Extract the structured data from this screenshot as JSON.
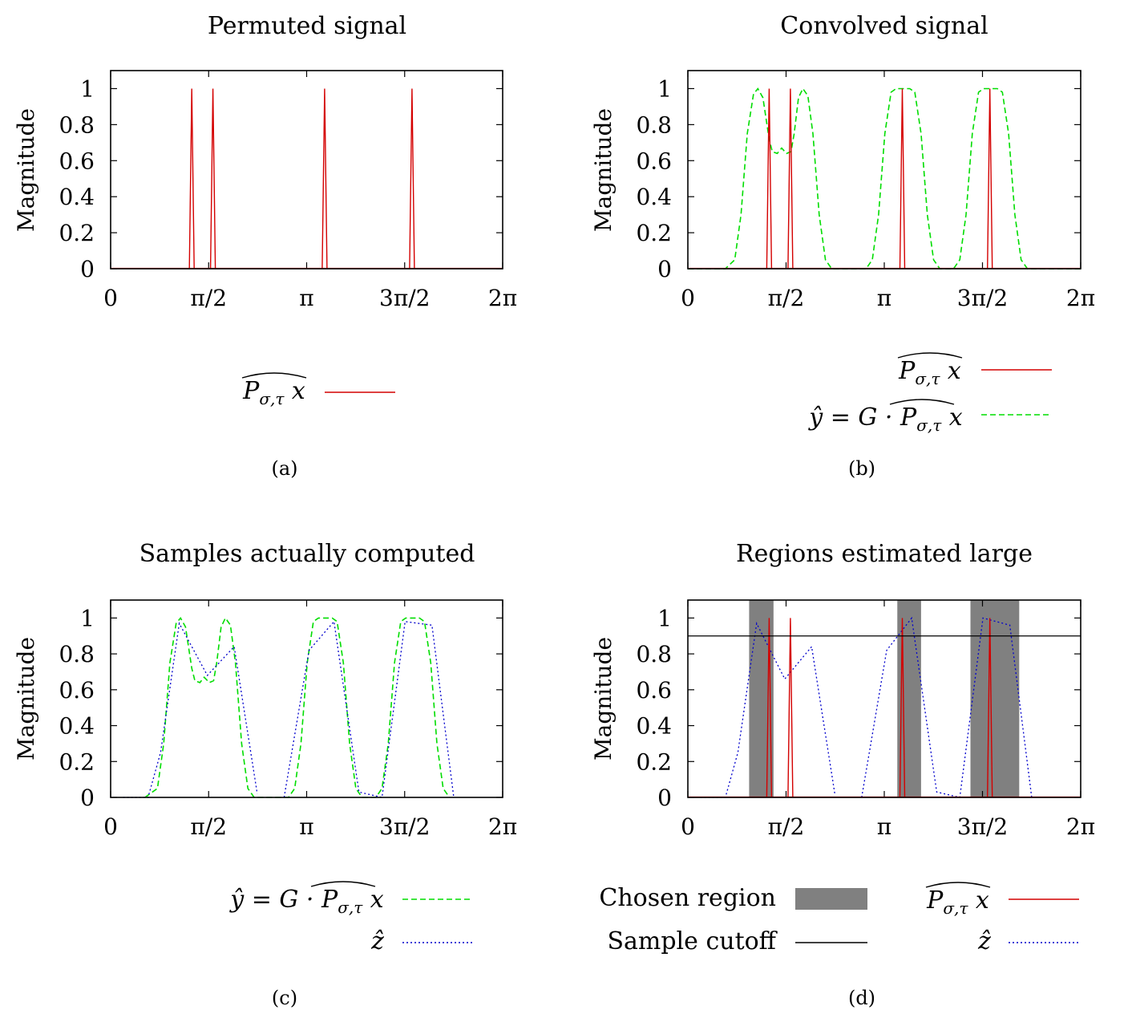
{
  "xtick_labels": [
    "0",
    "π/2",
    "π",
    "3π/2",
    "2π"
  ],
  "ytick_labels": [
    "0",
    "0.2",
    "0.4",
    "0.6",
    "0.8",
    "1"
  ],
  "colors": {
    "permuted": "#d40000",
    "convolved": "#00dd00",
    "zhat": "#0000cc",
    "chosen_region": "#808080",
    "cutoff": "#000000"
  },
  "chart_data": [
    {
      "id": "a",
      "type": "line",
      "title": "Permuted signal",
      "ylabel": "Magnitude",
      "caption": "(a)",
      "xlim": [
        0,
        6.2832
      ],
      "ylim": [
        0,
        1.1
      ],
      "legend_position": "bottom",
      "spikes": [
        1.3,
        1.64,
        3.43,
        4.83
      ],
      "series": [
        {
          "key": "permuted",
          "name": "P̂σ,τ x",
          "style": "solid",
          "color": "#d40000"
        }
      ]
    },
    {
      "id": "b",
      "type": "line",
      "title": "Convolved signal",
      "ylabel": "Magnitude",
      "caption": "(b)",
      "xlim": [
        0,
        6.2832
      ],
      "ylim": [
        0,
        1.1
      ],
      "legend_position": "bottom-right",
      "spikes": [
        1.3,
        1.64,
        3.43,
        4.83
      ],
      "convolved_points": [
        [
          0,
          0
        ],
        [
          0.6,
          0
        ],
        [
          0.75,
          0.05
        ],
        [
          0.85,
          0.3
        ],
        [
          0.95,
          0.75
        ],
        [
          1.05,
          0.97
        ],
        [
          1.12,
          1.0
        ],
        [
          1.2,
          0.95
        ],
        [
          1.3,
          0.72
        ],
        [
          1.35,
          0.65
        ],
        [
          1.43,
          0.64
        ],
        [
          1.5,
          0.67
        ],
        [
          1.58,
          0.64
        ],
        [
          1.65,
          0.65
        ],
        [
          1.7,
          0.75
        ],
        [
          1.77,
          0.95
        ],
        [
          1.84,
          1.0
        ],
        [
          1.92,
          0.96
        ],
        [
          2.0,
          0.75
        ],
        [
          2.1,
          0.3
        ],
        [
          2.2,
          0.05
        ],
        [
          2.3,
          0
        ],
        [
          2.85,
          0
        ],
        [
          2.95,
          0.05
        ],
        [
          3.05,
          0.3
        ],
        [
          3.15,
          0.75
        ],
        [
          3.25,
          0.98
        ],
        [
          3.33,
          1.0
        ],
        [
          3.55,
          1.0
        ],
        [
          3.63,
          0.98
        ],
        [
          3.73,
          0.75
        ],
        [
          3.83,
          0.3
        ],
        [
          3.93,
          0.05
        ],
        [
          4.03,
          0
        ],
        [
          4.25,
          0
        ],
        [
          4.35,
          0.05
        ],
        [
          4.45,
          0.3
        ],
        [
          4.55,
          0.75
        ],
        [
          4.65,
          0.98
        ],
        [
          4.73,
          1.0
        ],
        [
          4.95,
          1.0
        ],
        [
          5.03,
          0.98
        ],
        [
          5.13,
          0.75
        ],
        [
          5.23,
          0.3
        ],
        [
          5.33,
          0.05
        ],
        [
          5.43,
          0
        ],
        [
          6.2832,
          0
        ]
      ],
      "series": [
        {
          "key": "permuted",
          "name": "P̂σ,τ x",
          "style": "solid",
          "color": "#d40000"
        },
        {
          "key": "convolved",
          "name": "ŷ = G · P̂σ,τ x",
          "style": "dashed",
          "color": "#00dd00"
        }
      ]
    },
    {
      "id": "c",
      "type": "line",
      "title": "Samples actually computed",
      "ylabel": "Magnitude",
      "caption": "(c)",
      "xlim": [
        0,
        6.2832
      ],
      "ylim": [
        0,
        1.1
      ],
      "legend_position": "bottom",
      "convolved_points": [
        [
          0.55,
          0
        ],
        [
          0.75,
          0.05
        ],
        [
          0.85,
          0.3
        ],
        [
          0.95,
          0.75
        ],
        [
          1.05,
          0.97
        ],
        [
          1.12,
          1.0
        ],
        [
          1.2,
          0.95
        ],
        [
          1.3,
          0.72
        ],
        [
          1.35,
          0.65
        ],
        [
          1.43,
          0.64
        ],
        [
          1.5,
          0.67
        ],
        [
          1.58,
          0.64
        ],
        [
          1.65,
          0.65
        ],
        [
          1.7,
          0.75
        ],
        [
          1.77,
          0.95
        ],
        [
          1.84,
          1.0
        ],
        [
          1.92,
          0.96
        ],
        [
          2.0,
          0.75
        ],
        [
          2.1,
          0.3
        ],
        [
          2.2,
          0.05
        ],
        [
          2.3,
          0
        ],
        [
          2.85,
          0
        ],
        [
          2.95,
          0.05
        ],
        [
          3.05,
          0.3
        ],
        [
          3.15,
          0.75
        ],
        [
          3.25,
          0.98
        ],
        [
          3.33,
          1.0
        ],
        [
          3.55,
          1.0
        ],
        [
          3.63,
          0.98
        ],
        [
          3.73,
          0.75
        ],
        [
          3.83,
          0.3
        ],
        [
          3.93,
          0.05
        ],
        [
          4.03,
          0
        ],
        [
          4.25,
          0
        ],
        [
          4.35,
          0.05
        ],
        [
          4.45,
          0.3
        ],
        [
          4.55,
          0.75
        ],
        [
          4.65,
          0.98
        ],
        [
          4.73,
          1.0
        ],
        [
          4.95,
          1.0
        ],
        [
          5.03,
          0.98
        ],
        [
          5.13,
          0.75
        ],
        [
          5.23,
          0.3
        ],
        [
          5.33,
          0.05
        ],
        [
          5.43,
          0
        ]
      ],
      "zhat_segments": [
        [
          [
            0.2,
            0
          ],
          [
            0.6,
            0
          ],
          [
            0.8,
            0.25
          ],
          [
            1.1,
            0.97
          ],
          [
            1.55,
            0.68
          ],
          [
            1.98,
            0.84
          ],
          [
            2.35,
            0.02
          ]
        ],
        [
          [
            2.78,
            0
          ],
          [
            3.18,
            0.82
          ],
          [
            3.58,
            0.98
          ],
          [
            3.98,
            0.03
          ],
          [
            4.35,
            0
          ],
          [
            4.72,
            0.98
          ],
          [
            5.15,
            0.96
          ],
          [
            5.5,
            0
          ]
        ]
      ],
      "series": [
        {
          "key": "convolved",
          "name": "ŷ = G · P̂σ,τ x",
          "style": "dashed",
          "color": "#00dd00"
        },
        {
          "key": "zhat",
          "name": "ẑ",
          "style": "dotted",
          "color": "#0000cc"
        }
      ]
    },
    {
      "id": "d",
      "type": "line",
      "title": "Regions estimated large",
      "ylabel": "Magnitude",
      "caption": "(d)",
      "xlim": [
        0,
        6.2832
      ],
      "ylim": [
        0,
        1.1
      ],
      "legend_position": "bottom",
      "cutoff": 0.9,
      "chosen_regions": [
        [
          0.98,
          1.37
        ],
        [
          3.35,
          3.73
        ],
        [
          4.52,
          5.3
        ]
      ],
      "spikes": [
        1.3,
        1.64,
        3.43,
        4.83
      ],
      "zhat_segments": [
        [
          [
            0.2,
            0
          ],
          [
            0.6,
            0
          ],
          [
            0.8,
            0.25
          ],
          [
            1.1,
            0.97
          ],
          [
            1.55,
            0.66
          ],
          [
            1.98,
            0.84
          ],
          [
            2.35,
            0.02
          ]
        ],
        [
          [
            2.78,
            0
          ],
          [
            3.18,
            0.82
          ],
          [
            3.58,
            1.0
          ],
          [
            3.98,
            0.03
          ],
          [
            4.35,
            0
          ],
          [
            4.72,
            1.0
          ],
          [
            5.15,
            0.96
          ],
          [
            5.5,
            0
          ]
        ]
      ],
      "series": [
        {
          "key": "chosen_region",
          "name": "Chosen region",
          "style": "fill",
          "color": "#808080"
        },
        {
          "key": "cutoff",
          "name": "Sample cutoff",
          "style": "solid",
          "color": "#000000"
        },
        {
          "key": "permuted",
          "name": "P̂σ,τ x",
          "style": "solid",
          "color": "#d40000"
        },
        {
          "key": "zhat",
          "name": "ẑ",
          "style": "dotted",
          "color": "#0000cc"
        }
      ]
    }
  ]
}
